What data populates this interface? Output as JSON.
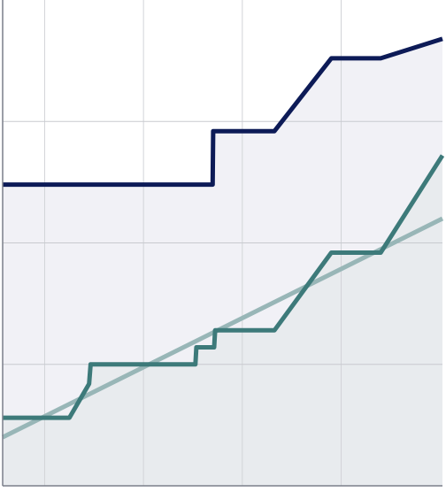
{
  "chart_data": {
    "type": "line",
    "title": "",
    "xlabel": "",
    "ylabel": "",
    "xlim": [
      0,
      8.9
    ],
    "ylim": [
      0,
      10
    ],
    "grid": true,
    "legend": "none",
    "series": [
      {
        "key": "upper",
        "color": "#0d1b57",
        "fill": "#f1f1f6",
        "points": [
          [
            0,
            6.2
          ],
          [
            4.25,
            6.2
          ],
          [
            4.26,
            7.3
          ],
          [
            5.5,
            7.3
          ],
          [
            6.65,
            8.8
          ],
          [
            7.65,
            8.8
          ],
          [
            8.9,
            9.2
          ]
        ]
      },
      {
        "key": "lower",
        "color": "#3d7a7a",
        "fill": "#e8ebee",
        "points": [
          [
            0,
            1.4
          ],
          [
            1.35,
            1.4
          ],
          [
            1.75,
            2.1
          ],
          [
            1.78,
            2.5
          ],
          [
            3.9,
            2.5
          ],
          [
            3.92,
            2.85
          ],
          [
            4.28,
            2.85
          ],
          [
            4.3,
            3.2
          ],
          [
            5.5,
            3.2
          ],
          [
            6.65,
            4.8
          ],
          [
            7.65,
            4.8
          ],
          [
            8.9,
            6.8
          ]
        ]
      },
      {
        "key": "trend",
        "color": "#98b6b7",
        "fill": "",
        "points": [
          [
            0,
            1.0
          ],
          [
            8.9,
            5.5
          ]
        ]
      }
    ]
  }
}
